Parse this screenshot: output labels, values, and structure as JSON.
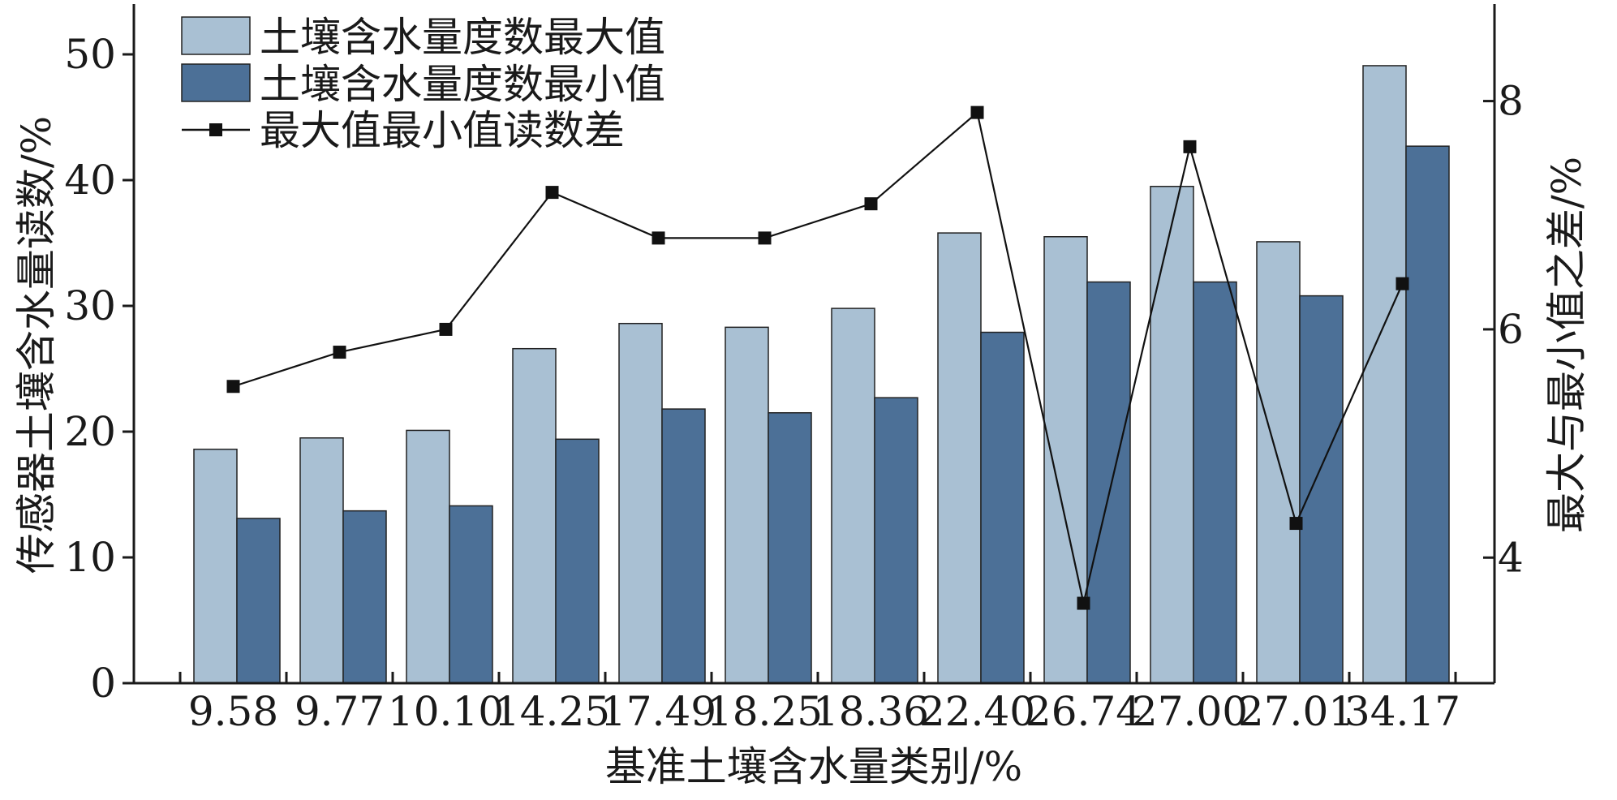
{
  "chart_data": {
    "type": "bar",
    "title": "",
    "xlabel": "基准土壤含水量类别/%",
    "ylabel": "传感器土壤含水量读数/%",
    "y2label": "最大与最小值之差/%",
    "categories": [
      "9.58",
      "9.77",
      "10.10",
      "14.25",
      "17.49",
      "18.25",
      "18.36",
      "22.40",
      "26.74",
      "27.00",
      "27.01",
      "34.17"
    ],
    "ylim": [
      0,
      54
    ],
    "y_ticks": [
      0,
      10,
      20,
      30,
      40,
      50
    ],
    "y2lim": [
      2.9,
      8.85
    ],
    "y2_ticks": [
      4,
      6,
      8
    ],
    "legend_position": "top-left",
    "grid": false,
    "series": [
      {
        "name": "土壤含水量度数最大值",
        "kind": "bar",
        "axis": "left",
        "color": "#a9c0d3",
        "values": [
          18.6,
          19.5,
          20.1,
          26.6,
          28.6,
          28.3,
          29.8,
          35.8,
          35.5,
          39.5,
          35.1,
          49.1
        ]
      },
      {
        "name": "土壤含水量度数最小值",
        "kind": "bar",
        "axis": "left",
        "color": "#4c7097",
        "values": [
          13.1,
          13.7,
          14.1,
          19.4,
          21.8,
          21.5,
          22.7,
          27.9,
          31.9,
          31.9,
          30.8,
          42.7
        ]
      },
      {
        "name": "最大值最小值读数差",
        "kind": "line",
        "axis": "right",
        "color": "#111111",
        "marker": "square",
        "values": [
          5.5,
          5.8,
          6.0,
          7.2,
          6.8,
          6.8,
          7.1,
          7.9,
          3.6,
          7.6,
          4.3,
          6.4
        ]
      }
    ]
  }
}
